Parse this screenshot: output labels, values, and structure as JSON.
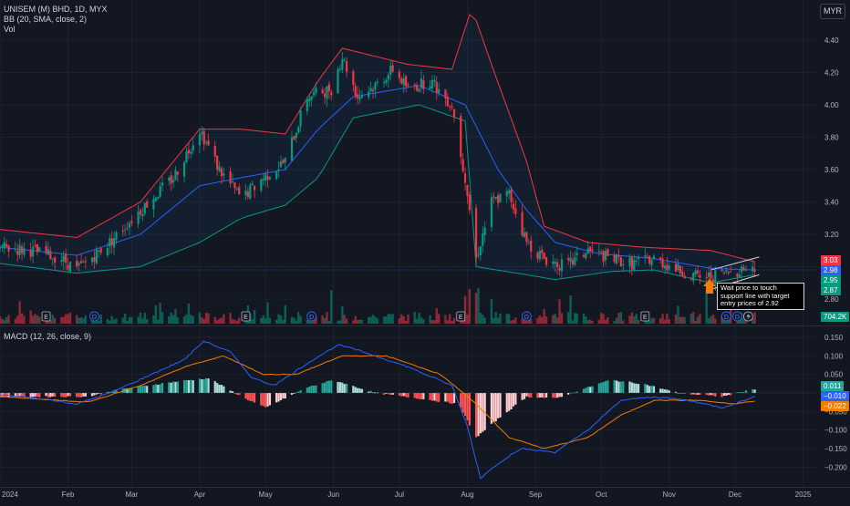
{
  "header": {
    "symbol_line": "UNISEM (M) BHD, 1D, MYX",
    "bb_line": "BB (20, SMA, close, 2)",
    "vol_line": "Vol",
    "currency": "MYR",
    "macd_line": "MACD (12, 26, close, 9)"
  },
  "annotation": {
    "text": "Wait price to touch support line with target entry prices of 2.92"
  },
  "price_tags": [
    {
      "label": "3.03",
      "value": 3.03,
      "color": "#f23645"
    },
    {
      "label": "2.98",
      "value": 2.98,
      "color": "#2962ff"
    },
    {
      "label": "2.95",
      "value": 2.95,
      "color": "#089981"
    },
    {
      "label": "2.87",
      "value": 2.87,
      "color": "#089981"
    }
  ],
  "volume_tag": {
    "label": "704.2K",
    "color": "#089981"
  },
  "macd_tags": [
    {
      "label": "0.011",
      "value": 0.011,
      "color": "#26a69a"
    },
    {
      "label": "−0.010",
      "value": -0.01,
      "color": "#2962ff"
    },
    {
      "label": "−0.022",
      "value": -0.022,
      "color": "#f57c00"
    }
  ],
  "event_markers": [
    {
      "label": "E",
      "date": "2024-01-22"
    },
    {
      "label": "D",
      "date": "2024-02-13"
    },
    {
      "label": "E",
      "date": "2024-04-22"
    },
    {
      "label": "D",
      "date": "2024-05-22"
    },
    {
      "label": "E",
      "date": "2024-07-29"
    },
    {
      "label": "D",
      "date": "2024-08-28"
    },
    {
      "label": "E",
      "date": "2024-10-21"
    },
    {
      "label": "D",
      "date": "2024-11-27"
    },
    {
      "label": "D",
      "date": "2024-12-02"
    }
  ],
  "chart_data": [
    {
      "type": "candlestick",
      "title": "UNISEM (M) BHD, 1D, MYX",
      "x_range": [
        "2024-01-01",
        "2025-01-07"
      ],
      "ylim": [
        2.72,
        4.6
      ],
      "y_ticks": [
        2.8,
        3.0,
        3.2,
        3.4,
        3.6,
        3.8,
        4.0,
        4.2,
        4.4
      ],
      "y_tick_labels": [
        "2.80",
        "3.00",
        "3.20",
        "3.40",
        "3.60",
        "3.80",
        "4.00",
        "4.20",
        "4.40"
      ],
      "x_tick_labels": [
        {
          "label": "2024",
          "date": "2024-01-01"
        },
        {
          "label": "Feb",
          "date": "2024-02-01"
        },
        {
          "label": "Mar",
          "date": "2024-03-01"
        },
        {
          "label": "Apr",
          "date": "2024-04-01"
        },
        {
          "label": "May",
          "date": "2024-05-01"
        },
        {
          "label": "Jun",
          "date": "2024-06-01"
        },
        {
          "label": "Jul",
          "date": "2024-07-01"
        },
        {
          "label": "Aug",
          "date": "2024-08-01"
        },
        {
          "label": "Sep",
          "date": "2024-09-01"
        },
        {
          "label": "Oct",
          "date": "2024-10-01"
        },
        {
          "label": "Nov",
          "date": "2024-11-01"
        },
        {
          "label": "Dec",
          "date": "2024-12-01"
        },
        {
          "label": "2025",
          "date": "2025-01-01"
        }
      ],
      "close_keypoints": [
        [
          "2024-01-01",
          3.12
        ],
        [
          "2024-01-15",
          3.1
        ],
        [
          "2024-01-29",
          3.05
        ],
        [
          "2024-02-05",
          2.98
        ],
        [
          "2024-02-20",
          3.15
        ],
        [
          "2024-03-05",
          3.35
        ],
        [
          "2024-03-20",
          3.55
        ],
        [
          "2024-04-01",
          3.85
        ],
        [
          "2024-04-10",
          3.6
        ],
        [
          "2024-04-20",
          3.42
        ],
        [
          "2024-04-30",
          3.55
        ],
        [
          "2024-05-10",
          3.65
        ],
        [
          "2024-05-20",
          4.05
        ],
        [
          "2024-05-31",
          4.1
        ],
        [
          "2024-06-05",
          4.3
        ],
        [
          "2024-06-12",
          4.05
        ],
        [
          "2024-06-20",
          4.12
        ],
        [
          "2024-06-28",
          4.22
        ],
        [
          "2024-07-05",
          4.1
        ],
        [
          "2024-07-15",
          4.15
        ],
        [
          "2024-07-25",
          4.0
        ],
        [
          "2024-07-31",
          3.55
        ],
        [
          "2024-08-05",
          3.05
        ],
        [
          "2024-08-12",
          3.4
        ],
        [
          "2024-08-20",
          3.45
        ],
        [
          "2024-08-28",
          3.15
        ],
        [
          "2024-09-05",
          3.05
        ],
        [
          "2024-09-15",
          3.0
        ],
        [
          "2024-09-25",
          3.1
        ],
        [
          "2024-10-05",
          3.05
        ],
        [
          "2024-10-15",
          3.02
        ],
        [
          "2024-10-25",
          3.05
        ],
        [
          "2024-11-05",
          2.98
        ],
        [
          "2024-11-15",
          2.93
        ],
        [
          "2024-11-25",
          2.95
        ],
        [
          "2024-12-05",
          2.99
        ],
        [
          "2024-12-10",
          2.98
        ]
      ],
      "bollinger_upper_keypoints": [
        [
          "2024-01-01",
          3.23
        ],
        [
          "2024-02-05",
          3.18
        ],
        [
          "2024-03-05",
          3.4
        ],
        [
          "2024-04-01",
          3.85
        ],
        [
          "2024-04-20",
          3.85
        ],
        [
          "2024-05-10",
          3.82
        ],
        [
          "2024-05-25",
          4.15
        ],
        [
          "2024-06-05",
          4.35
        ],
        [
          "2024-07-05",
          4.25
        ],
        [
          "2024-07-25",
          4.22
        ],
        [
          "2024-08-03",
          4.6
        ],
        [
          "2024-08-12",
          4.25
        ],
        [
          "2024-08-28",
          3.65
        ],
        [
          "2024-09-05",
          3.25
        ],
        [
          "2024-09-25",
          3.15
        ],
        [
          "2024-10-20",
          3.12
        ],
        [
          "2024-11-20",
          3.1
        ],
        [
          "2024-12-10",
          3.03
        ]
      ],
      "bollinger_basis_keypoints": [
        [
          "2024-01-01",
          3.12
        ],
        [
          "2024-02-05",
          3.07
        ],
        [
          "2024-03-05",
          3.2
        ],
        [
          "2024-04-01",
          3.5
        ],
        [
          "2024-04-20",
          3.55
        ],
        [
          "2024-05-10",
          3.6
        ],
        [
          "2024-05-25",
          3.85
        ],
        [
          "2024-06-10",
          4.05
        ],
        [
          "2024-07-10",
          4.12
        ],
        [
          "2024-07-31",
          4.0
        ],
        [
          "2024-08-15",
          3.6
        ],
        [
          "2024-08-28",
          3.35
        ],
        [
          "2024-09-10",
          3.15
        ],
        [
          "2024-09-30",
          3.08
        ],
        [
          "2024-10-25",
          3.05
        ],
        [
          "2024-11-20",
          2.99
        ],
        [
          "2024-12-10",
          2.98
        ]
      ],
      "bollinger_lower_keypoints": [
        [
          "2024-01-01",
          3.02
        ],
        [
          "2024-02-05",
          2.96
        ],
        [
          "2024-03-05",
          3.0
        ],
        [
          "2024-04-01",
          3.15
        ],
        [
          "2024-04-20",
          3.3
        ],
        [
          "2024-05-10",
          3.38
        ],
        [
          "2024-05-25",
          3.55
        ],
        [
          "2024-06-10",
          3.92
        ],
        [
          "2024-07-10",
          4.0
        ],
        [
          "2024-07-31",
          3.9
        ],
        [
          "2024-08-05",
          3.0
        ],
        [
          "2024-08-28",
          2.95
        ],
        [
          "2024-09-10",
          2.92
        ],
        [
          "2024-10-05",
          2.97
        ],
        [
          "2024-10-25",
          2.98
        ],
        [
          "2024-11-20",
          2.9
        ],
        [
          "2024-12-10",
          2.95
        ]
      ],
      "support_line": [
        [
          "2024-11-20",
          2.86
        ],
        [
          "2024-12-12",
          2.95
        ]
      ],
      "resistance_line": [
        [
          "2024-11-20",
          2.98
        ],
        [
          "2024-12-12",
          3.06
        ]
      ],
      "last_price_line": 2.98,
      "volume_tag": "704.2K"
    },
    {
      "type": "macd",
      "title": "MACD (12, 26, close, 9)",
      "ylim": [
        -0.25,
        0.19
      ],
      "y_ticks": [
        0.15,
        0.1,
        0.05,
        0.0,
        -0.05,
        -0.1,
        -0.15,
        -0.2
      ],
      "y_tick_labels": [
        "0.150",
        "0.100",
        "0.050",
        "0.000",
        "−0.050",
        "−0.100",
        "−0.150",
        "−0.200"
      ],
      "macd_keypoints": [
        [
          "2024-01-01",
          -0.005
        ],
        [
          "2024-01-20",
          -0.015
        ],
        [
          "2024-02-05",
          -0.03
        ],
        [
          "2024-02-20",
          0.0
        ],
        [
          "2024-03-10",
          0.05
        ],
        [
          "2024-03-25",
          0.09
        ],
        [
          "2024-04-03",
          0.14
        ],
        [
          "2024-04-15",
          0.11
        ],
        [
          "2024-04-25",
          0.04
        ],
        [
          "2024-05-05",
          0.02
        ],
        [
          "2024-05-20",
          0.08
        ],
        [
          "2024-06-03",
          0.13
        ],
        [
          "2024-06-15",
          0.11
        ],
        [
          "2024-07-05",
          0.07
        ],
        [
          "2024-07-25",
          0.02
        ],
        [
          "2024-08-01",
          -0.09
        ],
        [
          "2024-08-07",
          -0.23
        ],
        [
          "2024-08-15",
          -0.19
        ],
        [
          "2024-08-25",
          -0.15
        ],
        [
          "2024-09-10",
          -0.16
        ],
        [
          "2024-09-25",
          -0.1
        ],
        [
          "2024-10-10",
          -0.02
        ],
        [
          "2024-10-25",
          -0.01
        ],
        [
          "2024-11-10",
          -0.02
        ],
        [
          "2024-11-25",
          -0.04
        ],
        [
          "2024-12-10",
          -0.01
        ]
      ],
      "signal_keypoints": [
        [
          "2024-01-01",
          -0.01
        ],
        [
          "2024-02-10",
          -0.025
        ],
        [
          "2024-03-05",
          0.02
        ],
        [
          "2024-03-25",
          0.07
        ],
        [
          "2024-04-12",
          0.1
        ],
        [
          "2024-04-30",
          0.05
        ],
        [
          "2024-05-15",
          0.05
        ],
        [
          "2024-06-05",
          0.1
        ],
        [
          "2024-06-25",
          0.1
        ],
        [
          "2024-07-20",
          0.05
        ],
        [
          "2024-08-05",
          -0.03
        ],
        [
          "2024-08-20",
          -0.12
        ],
        [
          "2024-09-05",
          -0.15
        ],
        [
          "2024-09-25",
          -0.12
        ],
        [
          "2024-10-10",
          -0.06
        ],
        [
          "2024-10-25",
          -0.02
        ],
        [
          "2024-11-15",
          -0.02
        ],
        [
          "2024-11-30",
          -0.03
        ],
        [
          "2024-12-10",
          -0.022
        ]
      ],
      "histogram_keypoints": [
        [
          "2024-01-01",
          -0.01
        ],
        [
          "2024-01-25",
          -0.01
        ],
        [
          "2024-02-10",
          -0.01
        ],
        [
          "2024-02-25",
          0.01
        ],
        [
          "2024-03-20",
          0.03
        ],
        [
          "2024-04-05",
          0.04
        ],
        [
          "2024-04-20",
          -0.01
        ],
        [
          "2024-05-01",
          -0.04
        ],
        [
          "2024-05-20",
          0.015
        ],
        [
          "2024-06-01",
          0.035
        ],
        [
          "2024-06-20",
          0.0
        ],
        [
          "2024-07-10",
          -0.015
        ],
        [
          "2024-07-28",
          -0.03
        ],
        [
          "2024-08-05",
          -0.12
        ],
        [
          "2024-08-15",
          -0.07
        ],
        [
          "2024-08-28",
          -0.01
        ],
        [
          "2024-09-10",
          -0.015
        ],
        [
          "2024-09-25",
          0.015
        ],
        [
          "2024-10-05",
          0.035
        ],
        [
          "2024-10-20",
          0.025
        ],
        [
          "2024-11-05",
          0.0
        ],
        [
          "2024-11-25",
          -0.01
        ],
        [
          "2024-12-10",
          0.011
        ]
      ]
    }
  ]
}
